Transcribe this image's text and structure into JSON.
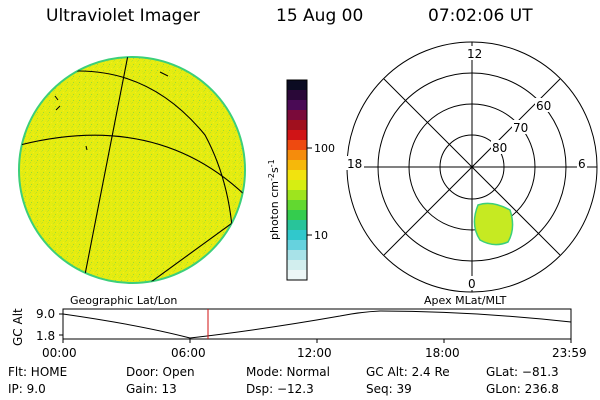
{
  "header": {
    "instrument": "Ultraviolet Imager",
    "date": "15 Aug 00",
    "time": "07:02:06 UT"
  },
  "colors": {
    "disk_fill": "#e6ec10",
    "disk_edge": "#3ccf7a",
    "oval_fill": "#c6ea22",
    "cursor": "#d01010"
  },
  "colorbar": {
    "label_text": "photon cm",
    "label_exp1": "-2",
    "label_s": "s",
    "label_exp2": "-1",
    "ticks": [
      "100",
      "10"
    ],
    "palette": [
      "#0b0b22",
      "#2a0838",
      "#4a0a55",
      "#7a0a3a",
      "#a0101e",
      "#d01416",
      "#ee4a10",
      "#f58c0c",
      "#f6b80a",
      "#f2e30e",
      "#d6ee12",
      "#9ee41e",
      "#62d830",
      "#34cc4e",
      "#28c49a",
      "#30c8cc",
      "#66d2de",
      "#a8e2e8",
      "#d2eeee",
      "#ecf6f6"
    ]
  },
  "polar": {
    "mlt_labels": [
      "12",
      "18",
      "6",
      "0"
    ],
    "lat_labels": [
      "60",
      "70",
      "80"
    ]
  },
  "panel_labels": {
    "left": "Geographic Lat/Lon",
    "right": "Apex MLat/MLT"
  },
  "altitude_plot": {
    "ylabel": "GC Alt",
    "yticks": [
      "9.0",
      "1.8"
    ],
    "xticks": [
      "00:00",
      "06:00",
      "12:00",
      "18:00",
      "23:59"
    ]
  },
  "info": {
    "flt": "Flt: HOME",
    "ip": "IP: 9.0",
    "door": "Door: Open",
    "gain": "Gain: 13",
    "mode": "Mode: Normal",
    "dsp": "Dsp:  −12.3",
    "gcalt": "GC Alt: 2.4 Re",
    "seq": "Seq: 39",
    "glat": "GLat: −81.3",
    "glon": "GLon: 236.8"
  }
}
